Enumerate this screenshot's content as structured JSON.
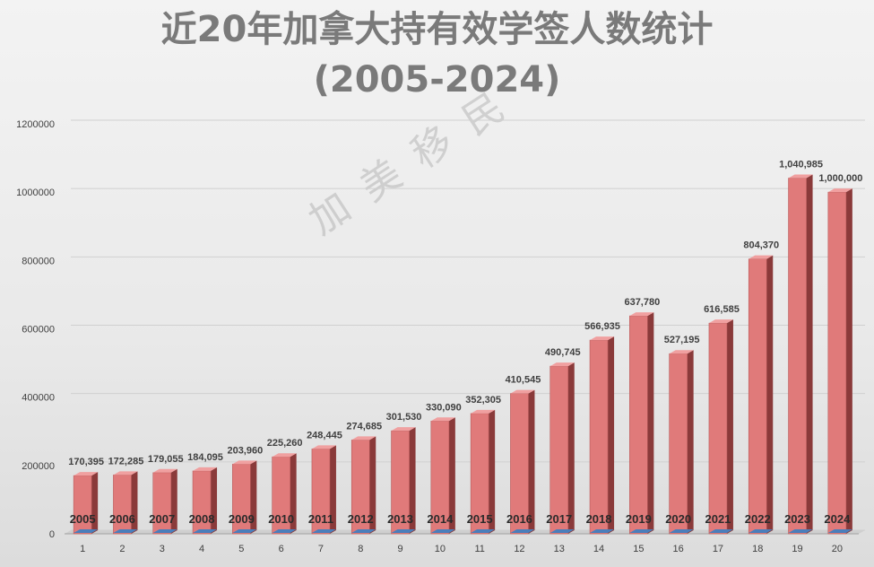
{
  "title_line1": "近20年加拿大持有效学签人数统计",
  "title_line2": "(2005-2024)",
  "watermark": "加美移民",
  "chart_data": {
    "type": "bar",
    "title": "近20年加拿大持有效学签人数统计 (2005-2024)",
    "x": [
      1,
      2,
      3,
      4,
      5,
      6,
      7,
      8,
      9,
      10,
      11,
      12,
      13,
      14,
      15,
      16,
      17,
      18,
      19,
      20
    ],
    "categories": [
      "2005",
      "2006",
      "2007",
      "2008",
      "2009",
      "2010",
      "2011",
      "2012",
      "2013",
      "2014",
      "2015",
      "2016",
      "2017",
      "2018",
      "2019",
      "2020",
      "2021",
      "2022",
      "2023",
      "2024"
    ],
    "values": [
      170395,
      172285,
      179055,
      184095,
      203960,
      225260,
      248445,
      274685,
      301530,
      330090,
      352305,
      410545,
      490745,
      566935,
      637780,
      527195,
      616585,
      804370,
      1040985,
      1000000
    ],
    "value_labels": [
      "170,395",
      "172,285",
      "179,055",
      "184,095",
      "203,960",
      "225,260",
      "248,445",
      "274,685",
      "301,530",
      "330,090",
      "352,305",
      "410,545",
      "490,745",
      "566,935",
      "637,780",
      "527,195",
      "616,585",
      "804,370",
      "1,040,985",
      "1,000,000"
    ],
    "yticks": [
      "0",
      "200000",
      "400000",
      "600000",
      "800000",
      "1000000",
      "1200000"
    ],
    "ylim": [
      0,
      1200000
    ],
    "xlabel": "",
    "ylabel": "",
    "grid": true,
    "legend": "none",
    "colors": {
      "bar_front": "#e07a7a",
      "bar_side": "#8a3a3a",
      "bar_top": "#f0a0a0",
      "category_series": "#4a7ebb"
    }
  }
}
